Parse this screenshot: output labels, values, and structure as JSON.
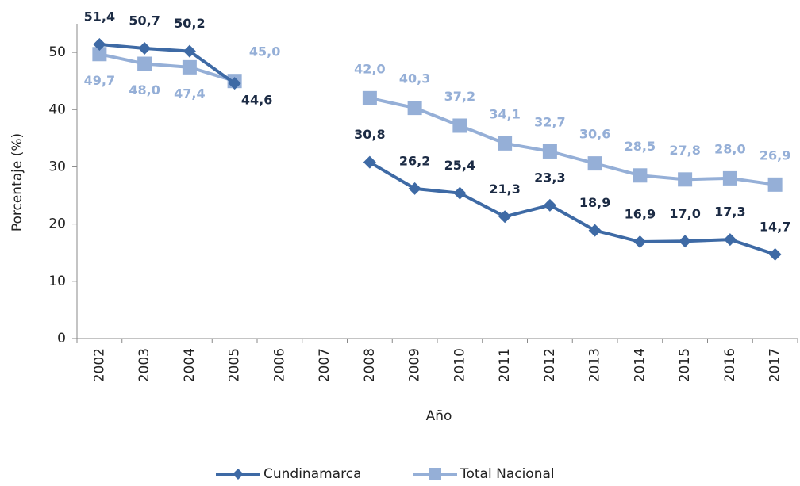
{
  "chart_data": {
    "type": "line",
    "x_label": "Año",
    "y_label": "Porcentaje (%)",
    "categories": [
      "2002",
      "2003",
      "2004",
      "2005",
      "2006",
      "2007",
      "2008",
      "2009",
      "2010",
      "2011",
      "2012",
      "2013",
      "2014",
      "2015",
      "2016",
      "2017"
    ],
    "series": [
      {
        "name": "Cundinamarca",
        "color": "#3e6aa5",
        "marker": "diamond",
        "values": [
          51.4,
          50.7,
          50.2,
          44.6,
          null,
          null,
          30.8,
          26.2,
          25.4,
          21.3,
          23.3,
          18.9,
          16.9,
          17.0,
          17.3,
          14.7
        ],
        "value_labels": [
          "51,4",
          "50,7",
          "50,2",
          "44,6",
          null,
          null,
          "30,8",
          "26,2",
          "25,4",
          "21,3",
          "23,3",
          "18,9",
          "16,9",
          "17,0",
          "17,3",
          "14,7"
        ]
      },
      {
        "name": "Total Nacional",
        "color": "#95afd7",
        "marker": "square",
        "values": [
          49.7,
          48.0,
          47.4,
          45.0,
          null,
          null,
          42.0,
          40.3,
          37.2,
          34.1,
          32.7,
          30.6,
          28.5,
          27.8,
          28.0,
          26.9
        ],
        "value_labels": [
          "49,7",
          "48,0",
          "47,4",
          "45,0",
          null,
          null,
          "42,0",
          "40,3",
          "37,2",
          "34,1",
          "32,7",
          "30,6",
          "28,5",
          "27,8",
          "28,0",
          "26,9"
        ]
      }
    ],
    "ylim": [
      0,
      55
    ],
    "yticks": [
      0,
      10,
      20,
      30,
      40,
      50
    ],
    "legend": "bottom"
  }
}
